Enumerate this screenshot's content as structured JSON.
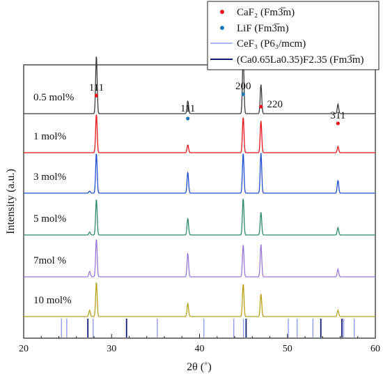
{
  "chart_data": {
    "type": "line",
    "xlabel": "2θ (˚)",
    "ylabel": "Intensity (a.u.)",
    "xlim": [
      20,
      60
    ],
    "x_ticks": [
      20,
      30,
      40,
      50,
      60
    ],
    "grid": false,
    "legend_position": "top-right",
    "legend": [
      {
        "name": "CaF₂ (Fm3̅m)",
        "marker": "dot",
        "color": "#e8141c"
      },
      {
        "name": "LiF (Fm3̅m)",
        "marker": "dot",
        "color": "#1f77b4"
      },
      {
        "name": "CeF₃ (P6₃/mcm)",
        "marker": "line",
        "color": "#8f9df0"
      },
      {
        "name": "(Ca0.65La0.35)F2.35 (Fm3̅m)",
        "marker": "line",
        "color": "#141a78"
      }
    ],
    "series": [
      {
        "name": "0.5 mol%",
        "color": "#3a3a3a",
        "peaks": [
          {
            "x": 28.27,
            "h": 1.0
          },
          {
            "x": 38.67,
            "h": 0.22
          },
          {
            "x": 44.97,
            "h": 1.0
          },
          {
            "x": 46.99,
            "h": 0.5
          },
          {
            "x": 55.75,
            "h": 0.16
          }
        ]
      },
      {
        "name": "1 mol%",
        "color": "#e8141c",
        "peaks": [
          {
            "x": 28.27,
            "h": 1.0
          },
          {
            "x": 38.67,
            "h": 0.2
          },
          {
            "x": 44.97,
            "h": 0.92
          },
          {
            "x": 46.99,
            "h": 0.82
          },
          {
            "x": 55.75,
            "h": 0.16
          }
        ]
      },
      {
        "name": "3 mol%",
        "color": "#1f4fd0",
        "peaks": [
          {
            "x": 27.5,
            "h": 0.05
          },
          {
            "x": 28.27,
            "h": 1.0
          },
          {
            "x": 38.67,
            "h": 0.52
          },
          {
            "x": 44.97,
            "h": 1.0
          },
          {
            "x": 46.99,
            "h": 1.0
          },
          {
            "x": 55.75,
            "h": 0.32
          }
        ]
      },
      {
        "name": "5 mol%",
        "color": "#2e8b6a",
        "peaks": [
          {
            "x": 27.5,
            "h": 0.08
          },
          {
            "x": 28.27,
            "h": 0.98
          },
          {
            "x": 38.67,
            "h": 0.45
          },
          {
            "x": 44.97,
            "h": 1.0
          },
          {
            "x": 46.99,
            "h": 0.62
          },
          {
            "x": 55.75,
            "h": 0.2
          }
        ]
      },
      {
        "name": "7mol %",
        "color": "#9a78d8",
        "peaks": [
          {
            "x": 27.5,
            "h": 0.14
          },
          {
            "x": 28.27,
            "h": 1.0
          },
          {
            "x": 38.67,
            "h": 0.62
          },
          {
            "x": 44.97,
            "h": 0.85
          },
          {
            "x": 46.99,
            "h": 0.85
          },
          {
            "x": 55.75,
            "h": 0.2
          }
        ]
      },
      {
        "name": "10 mol%",
        "color": "#b8a01a",
        "peaks": [
          {
            "x": 27.5,
            "h": 0.18
          },
          {
            "x": 28.27,
            "h": 1.0
          },
          {
            "x": 38.67,
            "h": 0.38
          },
          {
            "x": 44.97,
            "h": 0.95
          },
          {
            "x": 46.99,
            "h": 0.65
          },
          {
            "x": 55.75,
            "h": 0.18
          }
        ]
      }
    ],
    "peak_annotations": [
      {
        "label": "111",
        "x": 28.27,
        "phase": "CaF₂"
      },
      {
        "label": "111",
        "x": 38.67,
        "phase": "LiF"
      },
      {
        "label": "200",
        "x": 44.97,
        "phase": "LiF"
      },
      {
        "label": "220",
        "x": 46.99,
        "phase": "CaF₂"
      },
      {
        "label": "311",
        "x": 55.75,
        "phase": "CaF₂"
      }
    ],
    "reference_lines": {
      "CeF₃ (P6₃/mcm)": {
        "color": "#8f9df0",
        "x": [
          24.3,
          24.9,
          27.9,
          35.2,
          40.5,
          43.9,
          45.0,
          50.1,
          51.1,
          52.9,
          56.4,
          57.6
        ]
      },
      "(Ca0.65La0.35)F2.35 (Fm3̅m)": {
        "color": "#141a78",
        "x": [
          27.3,
          31.7,
          45.3,
          53.8,
          56.2
        ]
      }
    }
  }
}
